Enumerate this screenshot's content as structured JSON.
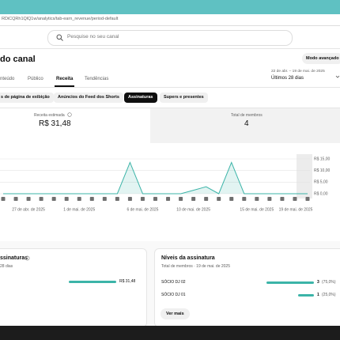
{
  "browser": {
    "url": "RDiCQRh1QlQ1w/analytics/tab-earn_revenue/period-default"
  },
  "search": {
    "placeholder": "Pesquise no seu canal"
  },
  "header": {
    "title": "do canal",
    "advanced_button": "Modo avançado"
  },
  "tabs": [
    "nteúdo",
    "Público",
    "Receita",
    "Tendências"
  ],
  "date_range": {
    "range": "22 de abr. – 19 de mai. de 2025",
    "label": "Últimos 28 dias"
  },
  "chips": [
    "s de página de exibição",
    "Anúncios do Feed dos Shorts",
    "Assinaturas",
    "Supers e presentes"
  ],
  "metrics": [
    {
      "label": "Receita estimada",
      "value": "R$ 31,48"
    },
    {
      "label": "Total de membros",
      "value": "4"
    }
  ],
  "chart_data": {
    "type": "line",
    "categories": [
      null,
      null,
      "27 de abr. de 2025",
      null,
      null,
      null,
      "1 de mai. de 2025",
      null,
      null,
      null,
      null,
      "6 de mai. de 2025",
      null,
      null,
      null,
      "10 de mai. de 2025",
      null,
      null,
      null,
      null,
      "15 de mai. de 2025",
      null,
      null,
      null,
      "19 de mai. de 2025"
    ],
    "values": [
      0,
      0,
      0,
      0,
      0,
      0,
      0,
      0,
      0,
      0,
      13.5,
      0,
      0,
      0,
      0,
      1.5,
      3,
      0,
      13.5,
      0,
      0,
      0,
      0,
      0,
      0
    ],
    "color": "#3cb4a8",
    "ylim": [
      0,
      15
    ],
    "yticks": [
      {
        "value": 0,
        "label": "R$ 0,00"
      },
      {
        "value": 5,
        "label": "R$ 5,00"
      },
      {
        "value": 10,
        "label": "R$ 10,00"
      },
      {
        "value": 15,
        "label": "R$ 15,00"
      }
    ],
    "grid": true
  },
  "subscriptions_card": {
    "title": "ssinaturas",
    "subtitle": "28 dias",
    "bar_value": "R$ 31,48"
  },
  "tiers_card": {
    "title": "Níveis da assinatura",
    "subtitle": "Total de membros · 19 de mai. de 2025",
    "rows": [
      {
        "name": "SÓCIO DJ 02",
        "count": 3,
        "percent": "(75,0%)"
      },
      {
        "name": "SÓCIO DJ 01",
        "count": 1,
        "percent": "(25,0%)"
      }
    ],
    "more_button": "Ver mais"
  }
}
